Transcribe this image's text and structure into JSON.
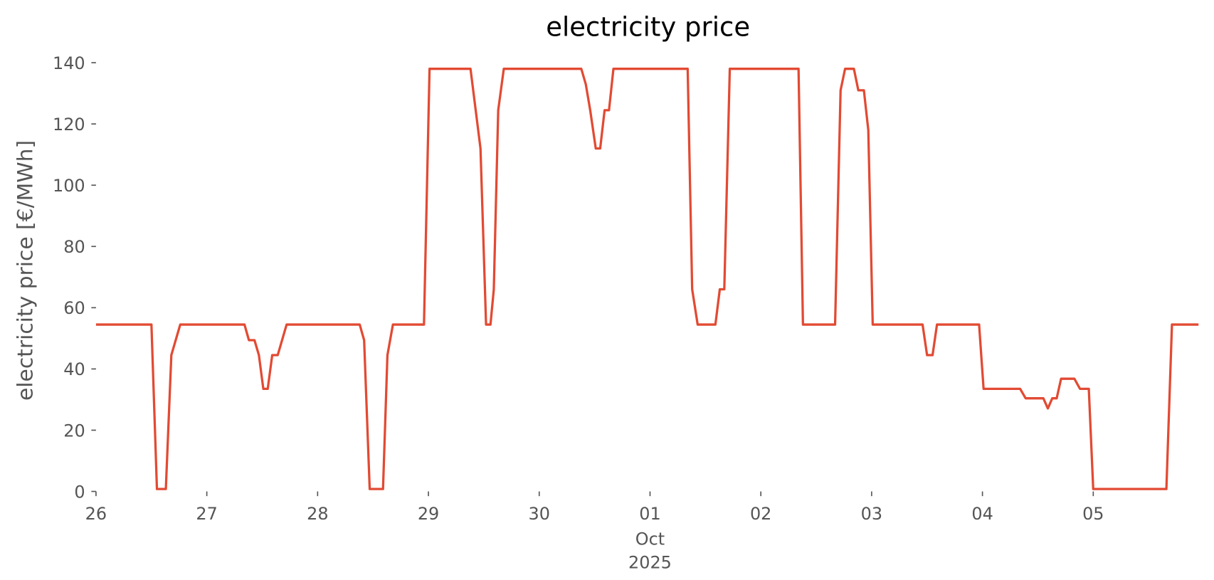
{
  "chart_data": {
    "type": "line",
    "title": "electricity price",
    "y_label": "electricity price [€/MWh]",
    "x_month_label": "Oct",
    "x_year_label": "2025",
    "x": [
      0,
      0.5,
      0.55,
      0.63,
      0.68,
      0.76,
      1.34,
      1.38,
      1.43,
      1.47,
      1.51,
      1.55,
      1.59,
      1.64,
      1.72,
      2.38,
      2.42,
      2.47,
      2.59,
      2.63,
      2.68,
      2.96,
      3.01,
      3.38,
      3.47,
      3.52,
      3.56,
      3.59,
      3.63,
      3.68,
      4.38,
      4.42,
      4.46,
      4.51,
      4.55,
      4.59,
      4.63,
      4.67,
      5.34,
      5.38,
      5.43,
      5.59,
      5.63,
      5.67,
      5.72,
      6.34,
      6.38,
      6.67,
      6.72,
      6.76,
      6.84,
      6.88,
      6.93,
      6.97,
      7.01,
      7.46,
      7.5,
      7.55,
      7.59,
      7.97,
      8.01,
      8.34,
      8.39,
      8.55,
      8.59,
      8.63,
      8.67,
      8.71,
      8.83,
      8.88,
      8.96,
      9.0,
      9.66,
      9.71,
      9.95
    ],
    "y": [
      54.5,
      54.5,
      0.8,
      0.8,
      44.5,
      54.5,
      54.5,
      49.4,
      49.4,
      44.5,
      33.5,
      33.5,
      44.5,
      44.5,
      54.5,
      54.5,
      49.4,
      0.8,
      0.8,
      44.5,
      54.5,
      54.5,
      138,
      138,
      112,
      54.5,
      54.5,
      66,
      124.5,
      138,
      138,
      133,
      124.5,
      112,
      112,
      124.5,
      124.5,
      138,
      138,
      66,
      54.5,
      54.5,
      66,
      66,
      138,
      138,
      54.5,
      54.5,
      131,
      138,
      138,
      131,
      131,
      118,
      54.5,
      54.5,
      44.5,
      44.5,
      54.5,
      54.5,
      33.5,
      33.5,
      30.4,
      30.4,
      27.1,
      30.4,
      30.4,
      36.8,
      36.8,
      33.5,
      33.5,
      0.8,
      0.8,
      54.5,
      54.5
    ],
    "color": "#e24a33",
    "xlim": [
      0,
      9.95
    ],
    "xticks": [
      {
        "value": 0,
        "label": "26"
      },
      {
        "value": 1,
        "label": "27"
      },
      {
        "value": 2,
        "label": "28"
      },
      {
        "value": 3,
        "label": "29"
      },
      {
        "value": 4,
        "label": "30"
      },
      {
        "value": 5,
        "label": "01"
      },
      {
        "value": 6,
        "label": "02"
      },
      {
        "value": 7,
        "label": "03"
      },
      {
        "value": 8,
        "label": "04"
      },
      {
        "value": 9,
        "label": "05"
      }
    ],
    "ylim": [
      0,
      140
    ],
    "yticks": [
      0,
      20,
      40,
      60,
      80,
      100,
      120,
      140
    ],
    "grid": false
  }
}
